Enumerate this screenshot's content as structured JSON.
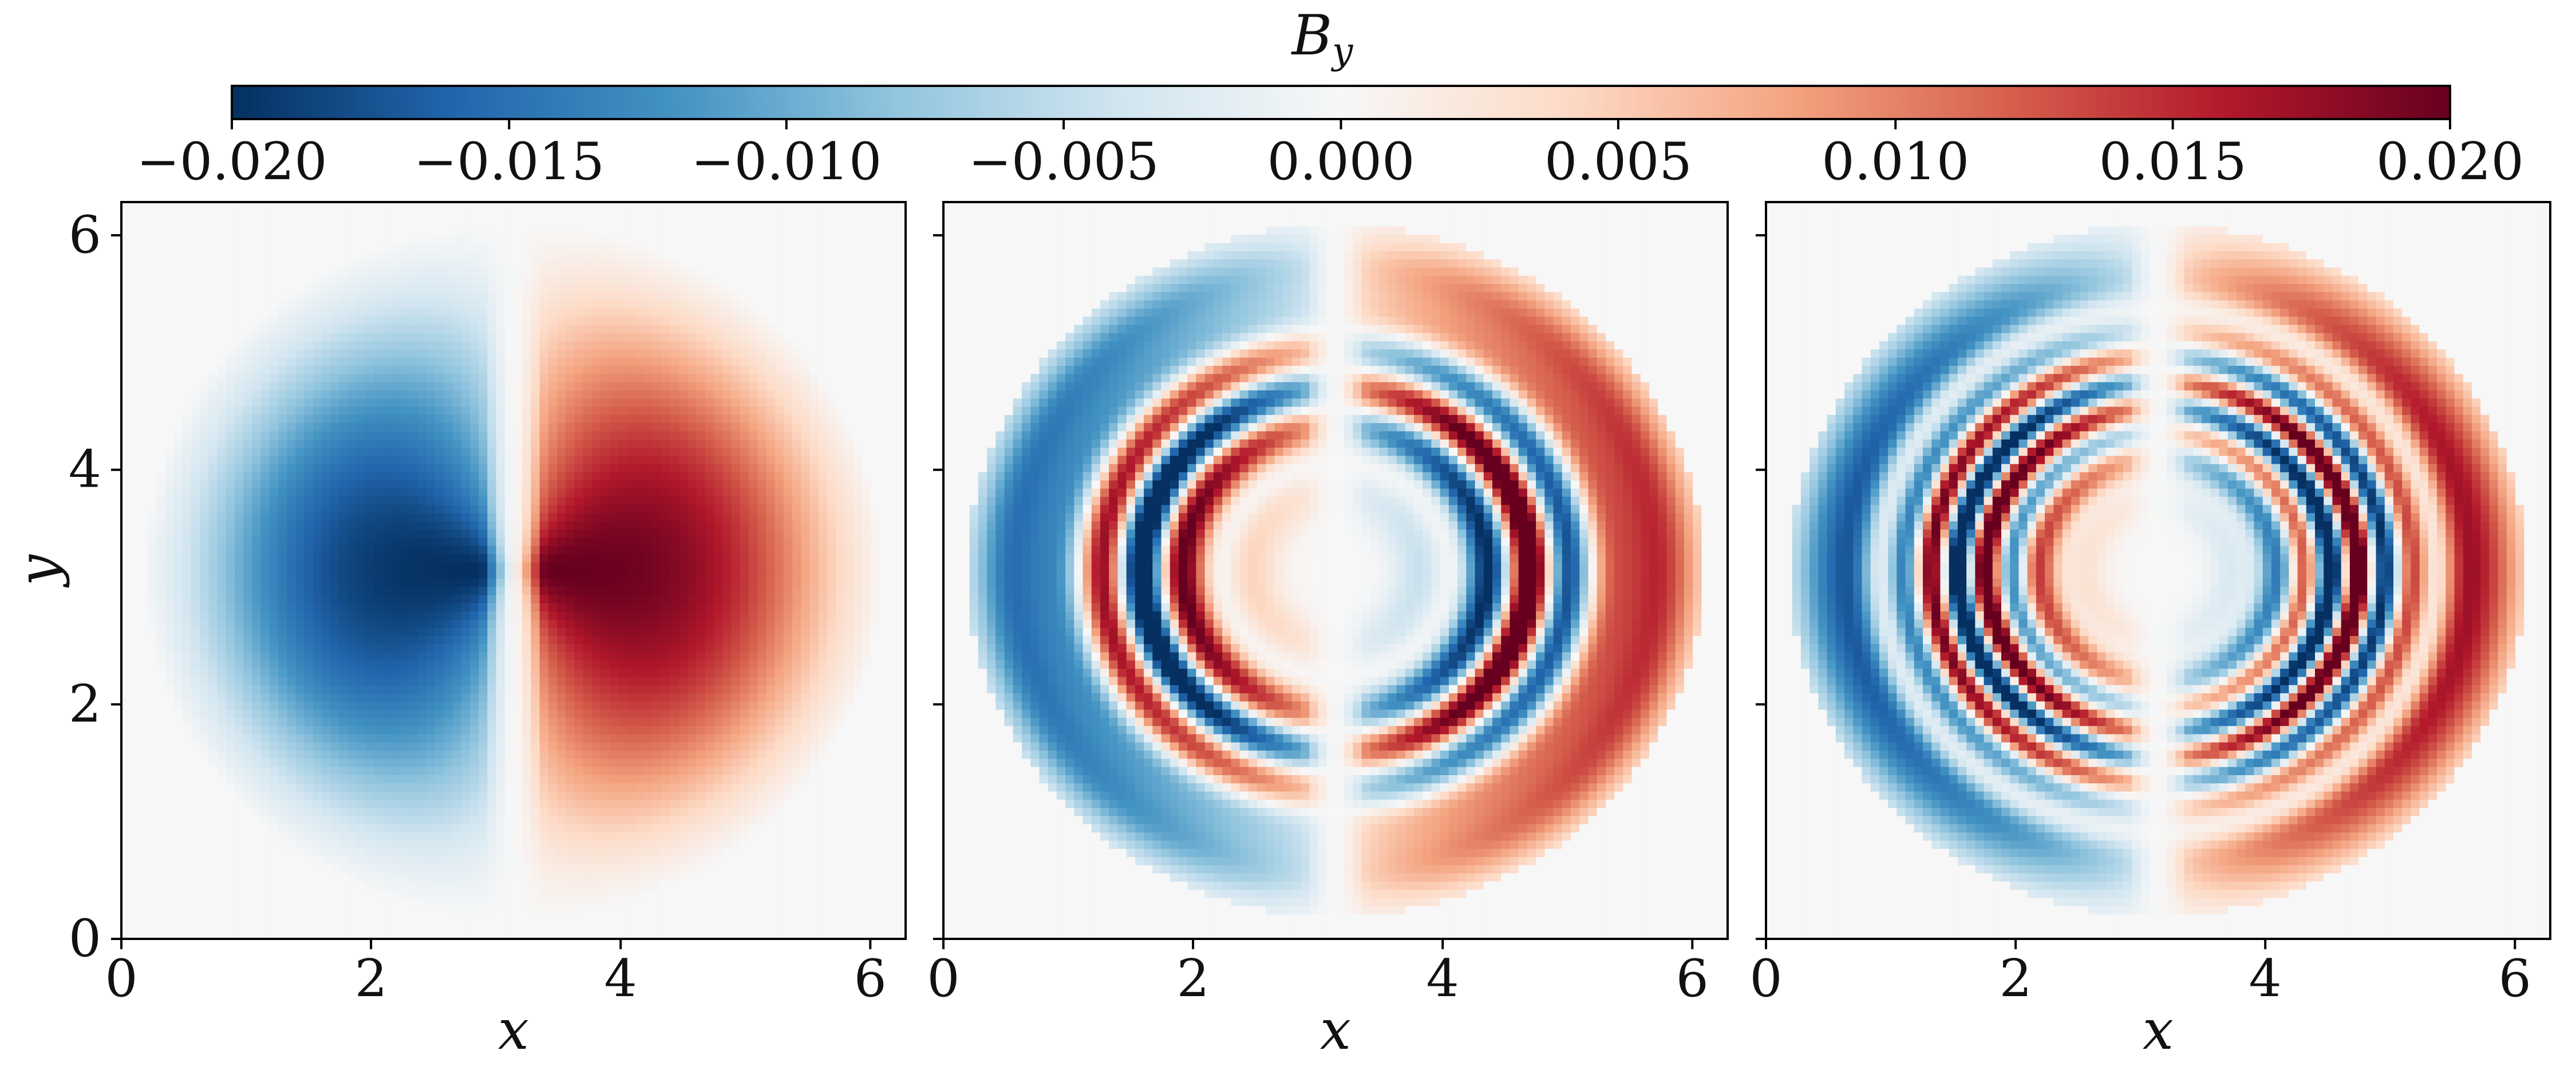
{
  "chart_data": {
    "type": "heatmap",
    "colorbar": {
      "label_base": "B",
      "label_sub": "y",
      "colormap": "RdBu_r",
      "range": [
        -0.02,
        0.02
      ],
      "ticks": [
        "−0.020",
        "−0.015",
        "−0.010",
        "−0.005",
        "0.000",
        "0.005",
        "0.010",
        "0.015",
        "0.020"
      ],
      "tick_values": [
        -0.02,
        -0.015,
        -0.01,
        -0.005,
        0.0,
        0.005,
        0.01,
        0.015,
        0.02
      ],
      "placement": "top"
    },
    "panels": [
      {
        "xlabel": "x",
        "ylabel": "y",
        "xlim": [
          0,
          6.283
        ],
        "ylim": [
          0,
          6.283
        ],
        "xticks": [
          "0",
          "2",
          "4",
          "6"
        ],
        "yticks": [
          "0",
          "2",
          "4",
          "6"
        ],
        "field": {
          "outer_radius": 2.95,
          "wave_number": 0,
          "amplitude": 0.02,
          "sigma": 2.2
        }
      },
      {
        "xlabel": "x",
        "ylabel": "",
        "xlim": [
          0,
          6.283
        ],
        "ylim": [
          0,
          6.283
        ],
        "xticks": [
          "0",
          "2",
          "4",
          "6"
        ],
        "yticks": [],
        "field": {
          "outer_radius": 2.95,
          "wave_number": 9,
          "amplitude": 0.02,
          "sigma": 2.2
        }
      },
      {
        "xlabel": "x",
        "ylabel": "",
        "xlim": [
          0,
          6.283
        ],
        "ylim": [
          0,
          6.283
        ],
        "xticks": [
          "0",
          "2",
          "4",
          "6"
        ],
        "yticks": [],
        "field": {
          "outer_radius": 2.95,
          "wave_number": 14,
          "amplitude": 0.02,
          "sigma": 2.2
        }
      }
    ],
    "grid": false
  }
}
